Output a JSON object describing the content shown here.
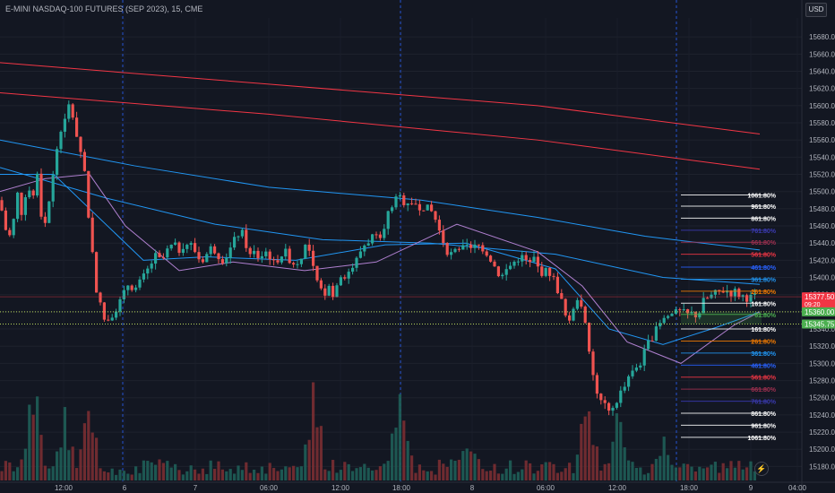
{
  "header": {
    "title": "E-MINI NASDAQ-100 FUTURES (SEP 2023), 15, CME",
    "currency": "USD",
    "bolt_icon": "lightning-icon"
  },
  "chart_data": {
    "type": "candlestick",
    "ylim": [
      15170,
      15700
    ],
    "y_ticks": [
      15680,
      15660,
      15640,
      15620,
      15600,
      15580,
      15560,
      15540,
      15520,
      15500,
      15480,
      15460,
      15440,
      15420,
      15400,
      15380,
      15360,
      15340,
      15320,
      15300,
      15280,
      15260,
      15240,
      15220,
      15200,
      15180
    ],
    "x_ticks": [
      "12:00",
      "6",
      "7",
      "06:00",
      "12:00",
      "18:00",
      "8",
      "06:00",
      "12:00",
      "18:00",
      "9",
      "04:00"
    ],
    "price_labels": [
      {
        "text": "15377.50",
        "sub": "09:20",
        "value": 15377.5,
        "color": "#f23645"
      },
      {
        "text": "15360.00",
        "value": 15360,
        "color": "#4caf50"
      },
      {
        "text": "15345.75",
        "value": 15345.75,
        "color": "#4caf50"
      }
    ],
    "fib_levels": [
      {
        "label": "1061.80%",
        "value": 15496,
        "color": "#ffffff"
      },
      {
        "label": "961.80%",
        "value": 15483,
        "color": "#ffffff"
      },
      {
        "label": "861.80%",
        "value": 15469,
        "color": "#ffffff"
      },
      {
        "label": "761.80%",
        "value": 15455,
        "color": "#3b3bb3"
      },
      {
        "label": "661.80%",
        "value": 15441,
        "color": "#a03050"
      },
      {
        "label": "561.80%",
        "value": 15427,
        "color": "#f23645"
      },
      {
        "label": "461.80%",
        "value": 15412,
        "color": "#2962ff"
      },
      {
        "label": "361.80%",
        "value": 15398,
        "color": "#2196f3"
      },
      {
        "label": "261.80%",
        "value": 15384,
        "color": "#f57c00"
      },
      {
        "label": "161.80%",
        "value": 15370,
        "color": "#ffffff"
      },
      {
        "label": "61.80%",
        "value": 15357,
        "color": "#4caf50"
      },
      {
        "label": "161.80%",
        "value": 15340,
        "color": "#ffffff"
      },
      {
        "label": "261.80%",
        "value": 15326,
        "color": "#f57c00"
      },
      {
        "label": "361.80%",
        "value": 15312,
        "color": "#2196f3"
      },
      {
        "label": "461.80%",
        "value": 15298,
        "color": "#2962ff"
      },
      {
        "label": "561.80%",
        "value": 15284,
        "color": "#f23645"
      },
      {
        "label": "661.80%",
        "value": 15270,
        "color": "#a03050"
      },
      {
        "label": "761.80%",
        "value": 15256,
        "color": "#3b3bb3"
      },
      {
        "label": "861.80%",
        "value": 15242,
        "color": "#ffffff"
      },
      {
        "label": "961.80%",
        "value": 15228,
        "color": "#ffffff"
      },
      {
        "label": "1061.80%",
        "value": 15214,
        "color": "#ffffff"
      }
    ],
    "close_path": [
      [
        0,
        15490
      ],
      [
        5,
        15460
      ],
      [
        10,
        15445
      ],
      [
        16,
        15470
      ],
      [
        20,
        15500
      ],
      [
        25,
        15470
      ],
      [
        30,
        15510
      ],
      [
        36,
        15490
      ],
      [
        42,
        15520
      ],
      [
        48,
        15450
      ],
      [
        53,
        15480
      ],
      [
        57,
        15500
      ],
      [
        62,
        15540
      ],
      [
        67,
        15570
      ],
      [
        72,
        15580
      ],
      [
        76,
        15600
      ],
      [
        80,
        15595
      ],
      [
        84,
        15570
      ],
      [
        88,
        15560
      ],
      [
        91,
        15540
      ],
      [
        95,
        15520
      ],
      [
        98,
        15480
      ],
      [
        101,
        15450
      ],
      [
        104,
        15420
      ],
      [
        107,
        15390
      ],
      [
        110,
        15375
      ],
      [
        114,
        15360
      ],
      [
        118,
        15345
      ],
      [
        122,
        15355
      ],
      [
        127,
        15360
      ],
      [
        132,
        15368
      ],
      [
        138,
        15380
      ],
      [
        144,
        15395
      ],
      [
        150,
        15385
      ],
      [
        157,
        15395
      ],
      [
        163,
        15405
      ],
      [
        168,
        15415
      ],
      [
        174,
        15425
      ],
      [
        180,
        15418
      ],
      [
        186,
        15430
      ],
      [
        193,
        15438
      ],
      [
        200,
        15432
      ],
      [
        206,
        15440
      ],
      [
        213,
        15438
      ],
      [
        218,
        15430
      ],
      [
        224,
        15418
      ],
      [
        230,
        15426
      ],
      [
        236,
        15435
      ],
      [
        242,
        15430
      ],
      [
        247,
        15420
      ],
      [
        252,
        15424
      ],
      [
        258,
        15435
      ],
      [
        264,
        15448
      ],
      [
        269,
        15455
      ],
      [
        274,
        15440
      ],
      [
        279,
        15425
      ],
      [
        285,
        15430
      ],
      [
        290,
        15420
      ],
      [
        295,
        15432
      ],
      [
        301,
        15425
      ],
      [
        306,
        15415
      ],
      [
        312,
        15425
      ],
      [
        318,
        15430
      ],
      [
        324,
        15420
      ],
      [
        330,
        15415
      ],
      [
        336,
        15425
      ],
      [
        342,
        15440
      ],
      [
        348,
        15420
      ],
      [
        352,
        15395
      ],
      [
        356,
        15390
      ],
      [
        362,
        15380
      ],
      [
        367,
        15395
      ],
      [
        371,
        15375
      ],
      [
        376,
        15395
      ],
      [
        381,
        15405
      ],
      [
        386,
        15402
      ],
      [
        391,
        15410
      ],
      [
        396,
        15415
      ],
      [
        402,
        15430
      ],
      [
        408,
        15440
      ],
      [
        414,
        15445
      ],
      [
        420,
        15455
      ],
      [
        425,
        15450
      ],
      [
        430,
        15465
      ],
      [
        435,
        15480
      ],
      [
        441,
        15490
      ],
      [
        446,
        15493
      ],
      [
        451,
        15488
      ],
      [
        456,
        15489
      ],
      [
        462,
        15488
      ],
      [
        468,
        15483
      ],
      [
        474,
        15483
      ],
      [
        479,
        15478
      ],
      [
        484,
        15475
      ],
      [
        488,
        15460
      ],
      [
        492,
        15450
      ],
      [
        497,
        15436
      ],
      [
        502,
        15425
      ],
      [
        506,
        15430
      ],
      [
        511,
        15428
      ],
      [
        516,
        15433
      ],
      [
        521,
        15435
      ],
      [
        526,
        15432
      ],
      [
        531,
        15436
      ],
      [
        536,
        15437
      ],
      [
        541,
        15432
      ],
      [
        546,
        15425
      ],
      [
        551,
        15415
      ],
      [
        556,
        15405
      ],
      [
        561,
        15402
      ],
      [
        566,
        15410
      ],
      [
        571,
        15415
      ],
      [
        576,
        15420
      ],
      [
        581,
        15425
      ],
      [
        586,
        15420
      ],
      [
        591,
        15415
      ],
      [
        596,
        15422
      ],
      [
        601,
        15410
      ],
      [
        606,
        15405
      ],
      [
        611,
        15408
      ],
      [
        616,
        15403
      ],
      [
        621,
        15390
      ],
      [
        626,
        15375
      ],
      [
        631,
        15355
      ],
      [
        636,
        15345
      ],
      [
        641,
        15370
      ],
      [
        646,
        15380
      ],
      [
        651,
        15360
      ],
      [
        655,
        15330
      ],
      [
        659,
        15300
      ],
      [
        663,
        15280
      ],
      [
        667,
        15262
      ],
      [
        671,
        15255
      ],
      [
        675,
        15250
      ],
      [
        679,
        15240
      ],
      [
        683,
        15245
      ],
      [
        687,
        15255
      ],
      [
        691,
        15262
      ],
      [
        695,
        15270
      ],
      [
        699,
        15275
      ],
      [
        703,
        15285
      ],
      [
        707,
        15290
      ],
      [
        711,
        15297
      ],
      [
        716,
        15302
      ],
      [
        721,
        15318
      ],
      [
        726,
        15328
      ],
      [
        731,
        15336
      ],
      [
        736,
        15345
      ],
      [
        741,
        15350
      ],
      [
        746,
        15355
      ],
      [
        751,
        15357
      ],
      [
        756,
        15359
      ],
      [
        761,
        15360
      ],
      [
        766,
        15356
      ],
      [
        771,
        15358
      ],
      [
        776,
        15356
      ],
      [
        781,
        15360
      ],
      [
        785,
        15372
      ],
      [
        790,
        15376
      ],
      [
        795,
        15379
      ],
      [
        800,
        15382
      ],
      [
        805,
        15384
      ],
      [
        810,
        15386
      ],
      [
        815,
        15382
      ],
      [
        820,
        15384
      ],
      [
        825,
        15380
      ],
      [
        830,
        15378
      ],
      [
        835,
        15376
      ],
      [
        840,
        15377
      ],
      [
        845,
        15377.5
      ]
    ],
    "lines": [
      {
        "color": "#f23645",
        "points": [
          [
            0,
            15650
          ],
          [
            300,
            15625
          ],
          [
            600,
            15600
          ],
          [
            848,
            15567
          ]
        ]
      },
      {
        "color": "#f23645",
        "points": [
          [
            0,
            15615
          ],
          [
            300,
            15590
          ],
          [
            600,
            15560
          ],
          [
            848,
            15526
          ]
        ]
      },
      {
        "color": "#2196f3",
        "points": [
          [
            0,
            15560
          ],
          [
            150,
            15530
          ],
          [
            300,
            15505
          ],
          [
            470,
            15490
          ],
          [
            600,
            15470
          ],
          [
            720,
            15448
          ],
          [
            848,
            15432
          ]
        ]
      },
      {
        "color": "#2196f3",
        "points": [
          [
            0,
            15528
          ],
          [
            120,
            15492
          ],
          [
            240,
            15462
          ],
          [
            360,
            15444
          ],
          [
            480,
            15440
          ],
          [
            620,
            15427
          ],
          [
            740,
            15400
          ],
          [
            848,
            15392
          ]
        ]
      },
      {
        "color": "#2196f3",
        "points": [
          [
            0,
            15520
          ],
          [
            60,
            15520
          ],
          [
            110,
            15470
          ],
          [
            160,
            15420
          ],
          [
            230,
            15424
          ],
          [
            330,
            15420
          ],
          [
            430,
            15438
          ],
          [
            520,
            15440
          ],
          [
            620,
            15410
          ],
          [
            680,
            15340
          ],
          [
            740,
            15322
          ],
          [
            800,
            15342
          ],
          [
            848,
            15360
          ]
        ]
      },
      {
        "color": "#b080d0",
        "points": [
          [
            0,
            15500
          ],
          [
            50,
            15515
          ],
          [
            100,
            15520
          ],
          [
            140,
            15460
          ],
          [
            200,
            15408
          ],
          [
            260,
            15418
          ],
          [
            340,
            15408
          ],
          [
            420,
            15418
          ],
          [
            510,
            15462
          ],
          [
            600,
            15430
          ],
          [
            650,
            15390
          ],
          [
            700,
            15325
          ],
          [
            760,
            15300
          ],
          [
            820,
            15345
          ],
          [
            848,
            15360
          ]
        ]
      }
    ],
    "volume_colors": {
      "up": "#26a69a",
      "down": "#ef5350"
    }
  }
}
